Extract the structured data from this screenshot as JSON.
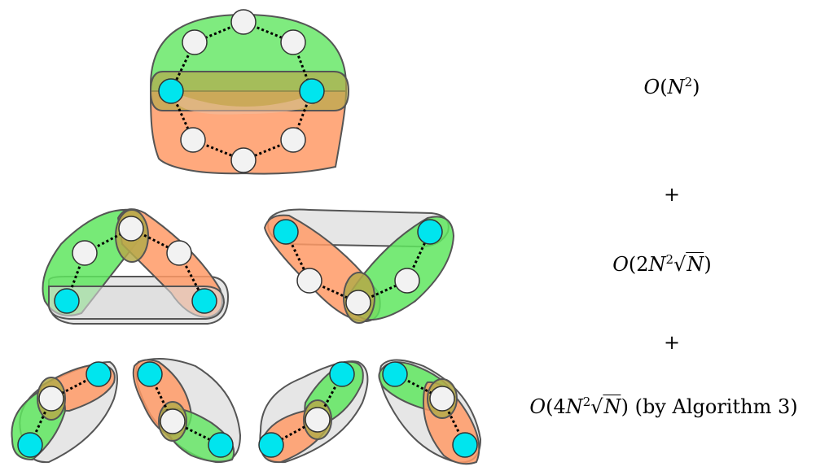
{
  "colors": {
    "green": "#5fe65f",
    "orange": "#ff9a66",
    "gray": "#dcdcdc",
    "overlap": "#b5aa4a",
    "node_cyan": "#00e5ee",
    "node_white": "#f2f2f2",
    "outline": "#555555"
  },
  "formulas": {
    "level1": "O(N²)",
    "plus1": "+",
    "level2": "O(2N²√N)",
    "plus2": "+",
    "level3": "O(4N²√N) (by Algorithm 3)"
  }
}
